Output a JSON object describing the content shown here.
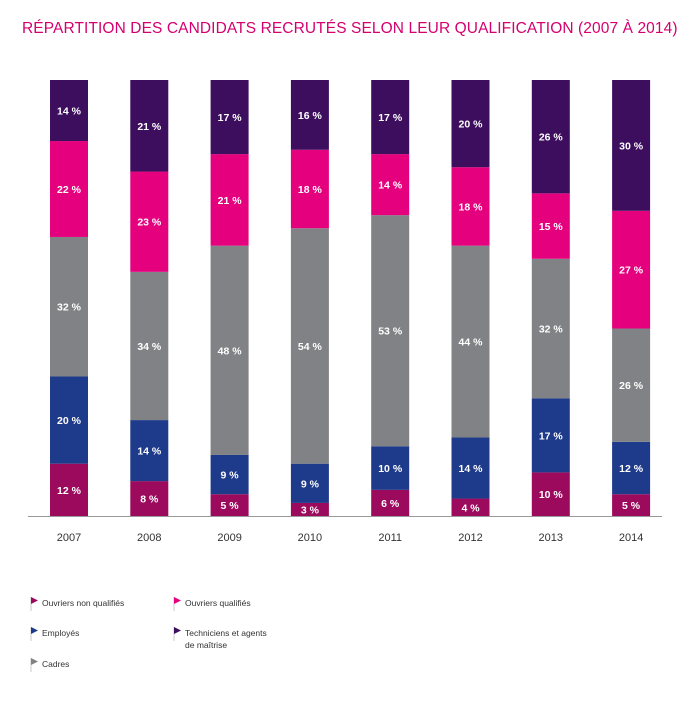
{
  "title": "RÉPARTITION DES CANDIDATS RECRUTÉS SELON LEUR QUALIFICATION (2007 À 2014)",
  "colors": {
    "title": "#d4006f",
    "ouvriers_non_qualifies": "#9b0a5c",
    "ouvriers_qualifies": "#e5007e",
    "employes": "#1e3a8a",
    "techniciens": "#3d0e5e",
    "cadres": "#808285",
    "axis": "#999999",
    "label": "#ffffff",
    "tick": "#333333"
  },
  "legend": {
    "ouvriers_non_qualifies": "Ouvriers non qualifiés",
    "ouvriers_qualifies": "Ouvriers qualifiés",
    "employes": "Employés",
    "techniciens_line1": "Techniciens et agents",
    "techniciens_line2": "de maîtrise",
    "cadres": "Cadres"
  },
  "chart_data": {
    "type": "bar",
    "stacked": true,
    "percent": true,
    "categories": [
      "2007",
      "2008",
      "2009",
      "2010",
      "2011",
      "2012",
      "2013",
      "2014"
    ],
    "series": [
      {
        "name": "Ouvriers non qualifiés",
        "key": "ouvriers_non_qualifies",
        "values": [
          12,
          8,
          5,
          3,
          6,
          4,
          10,
          5
        ]
      },
      {
        "name": "Employés",
        "key": "employes",
        "values": [
          20,
          14,
          9,
          9,
          10,
          14,
          17,
          12
        ]
      },
      {
        "name": "Cadres",
        "key": "cadres",
        "values": [
          32,
          34,
          48,
          54,
          53,
          44,
          32,
          26
        ]
      },
      {
        "name": "Ouvriers qualifiés",
        "key": "ouvriers_qualifies",
        "values": [
          22,
          23,
          21,
          18,
          14,
          18,
          15,
          27
        ]
      },
      {
        "name": "Techniciens et agents de maîtrise",
        "key": "techniciens",
        "values": [
          14,
          21,
          17,
          16,
          17,
          20,
          26,
          30
        ]
      }
    ],
    "data_labels": [
      [
        "12 %",
        "8 %",
        "5 %",
        "3 %",
        "6 %",
        "4 %",
        "10 %",
        "5 %"
      ],
      [
        "20 %",
        "14 %",
        "9 %",
        "9 %",
        "10 %",
        "14 %",
        "17 %",
        "12 %"
      ],
      [
        "32 %",
        "34 %",
        "48 %",
        "54 %",
        "53 %",
        "44 %",
        "32 %",
        "26 %"
      ],
      [
        "22 %",
        "23 %",
        "21 %",
        "18 %",
        "14 %",
        "18 %",
        "15 %",
        "27 %"
      ],
      [
        "14 %",
        "21 %",
        "17 %",
        "16 %",
        "17 %",
        "20 %",
        "26 %",
        "30 %"
      ]
    ],
    "ylim": [
      0,
      100
    ],
    "grid": false,
    "legend_position": "bottom"
  }
}
